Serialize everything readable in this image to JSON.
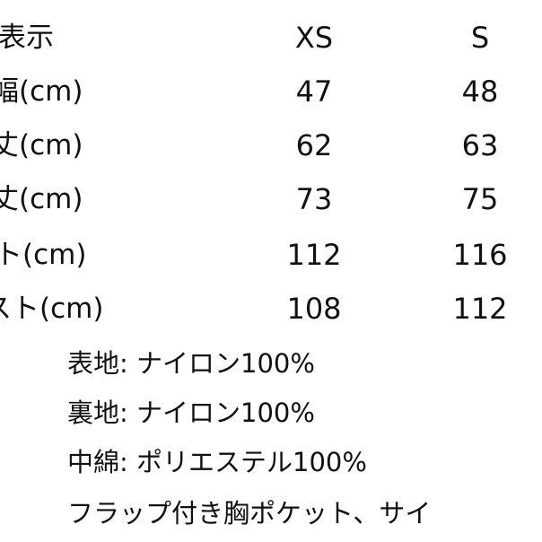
{
  "table": {
    "header": {
      "label": "表示",
      "xs": "XS",
      "s": "S"
    },
    "rows": [
      {
        "label": "幅(cm)",
        "xs": "47",
        "s": "48"
      },
      {
        "label": "丈(cm)",
        "xs": "62",
        "s": "63"
      },
      {
        "label": "丈(cm)",
        "xs": "73",
        "s": "75"
      },
      {
        "label": "ト(cm)",
        "xs": "112",
        "s": "116"
      },
      {
        "label": "スト(cm)",
        "xs": "108",
        "s": "112"
      }
    ]
  },
  "notes": [
    "表地: ナイロン100%",
    "裏地: ナイロン100%",
    "中綿: ポリエステル100%",
    "フラップ付き胸ポケット、サイ"
  ]
}
